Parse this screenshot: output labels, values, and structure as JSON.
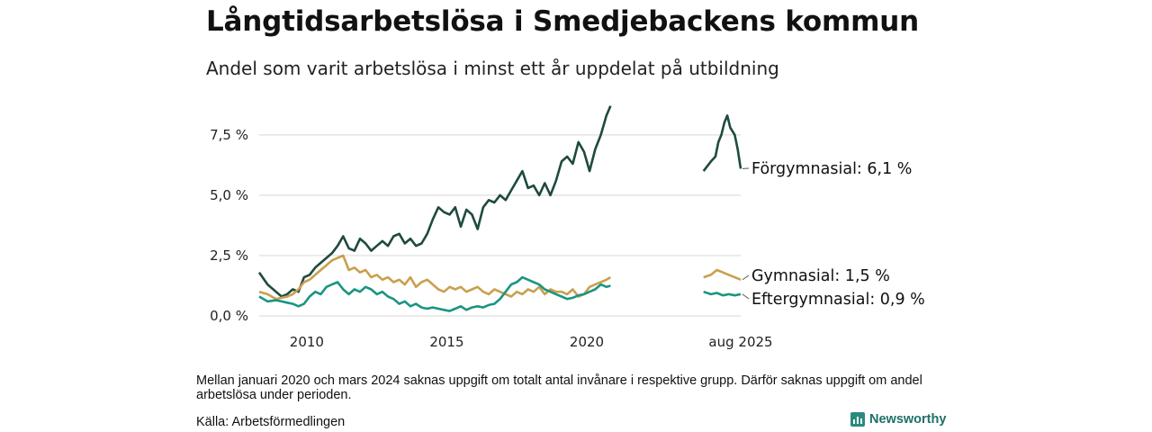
{
  "title": "Långtidsarbetslösa i Smedjebackens kommun",
  "subtitle": "Andel som varit arbetslösa i minst ett år uppdelat på utbildning",
  "note": "Mellan januari 2020 och mars 2024 saknas uppgift om totalt antal invånare i respektive grupp. Därför saknas uppgift om andel arbetslösa under perioden.",
  "source": "Källa: Arbetsförmedlingen",
  "brand": "Newsworthy",
  "colors": {
    "forgymnasial": "#1e4a40",
    "gymnasial": "#c9a04e",
    "eftergymnasial": "#1a9580",
    "grid": "#dddddd"
  },
  "chart_data": {
    "type": "line",
    "yticks": [
      "0,0 %",
      "2,5 %",
      "5,0 %",
      "7,5 %"
    ],
    "ytick_values": [
      0,
      2.5,
      5.0,
      7.5
    ],
    "xticks": [
      "2010",
      "2015",
      "2020",
      "aug 2025"
    ],
    "xtick_values": [
      2010,
      2015,
      2020,
      2025.6
    ],
    "ylim": [
      0,
      8.8
    ],
    "x_break": [
      2020.9,
      2024.3
    ],
    "series": [
      {
        "name": "Förgymnasial",
        "end_label": "Förgymnasial: 6,1 %",
        "color": "#1e4a40",
        "segments": [
          [
            [
              2008.3,
              1.8
            ],
            [
              2008.6,
              1.3
            ],
            [
              2008.9,
              1.0
            ],
            [
              2009.1,
              0.8
            ],
            [
              2009.3,
              0.9
            ],
            [
              2009.5,
              1.1
            ],
            [
              2009.7,
              1.0
            ],
            [
              2009.9,
              1.6
            ],
            [
              2010.1,
              1.7
            ],
            [
              2010.3,
              2.0
            ],
            [
              2010.5,
              2.2
            ],
            [
              2010.7,
              2.4
            ],
            [
              2010.9,
              2.6
            ],
            [
              2011.1,
              2.9
            ],
            [
              2011.3,
              3.3
            ],
            [
              2011.5,
              2.8
            ],
            [
              2011.7,
              2.7
            ],
            [
              2011.9,
              3.2
            ],
            [
              2012.1,
              3.0
            ],
            [
              2012.3,
              2.7
            ],
            [
              2012.5,
              2.9
            ],
            [
              2012.7,
              3.1
            ],
            [
              2012.9,
              2.9
            ],
            [
              2013.1,
              3.3
            ],
            [
              2013.3,
              3.4
            ],
            [
              2013.5,
              3.0
            ],
            [
              2013.7,
              3.2
            ],
            [
              2013.9,
              2.9
            ],
            [
              2014.1,
              3.0
            ],
            [
              2014.3,
              3.4
            ],
            [
              2014.5,
              4.0
            ],
            [
              2014.7,
              4.5
            ],
            [
              2014.9,
              4.3
            ],
            [
              2015.1,
              4.2
            ],
            [
              2015.3,
              4.5
            ],
            [
              2015.5,
              3.7
            ],
            [
              2015.7,
              4.4
            ],
            [
              2015.9,
              4.2
            ],
            [
              2016.1,
              3.6
            ],
            [
              2016.3,
              4.5
            ],
            [
              2016.5,
              4.8
            ],
            [
              2016.7,
              4.7
            ],
            [
              2016.9,
              5.0
            ],
            [
              2017.1,
              4.8
            ],
            [
              2017.3,
              5.2
            ],
            [
              2017.5,
              5.6
            ],
            [
              2017.7,
              6.0
            ],
            [
              2017.9,
              5.3
            ],
            [
              2018.1,
              5.4
            ],
            [
              2018.3,
              5.0
            ],
            [
              2018.5,
              5.5
            ],
            [
              2018.7,
              5.0
            ],
            [
              2018.9,
              5.6
            ],
            [
              2019.1,
              6.4
            ],
            [
              2019.3,
              6.6
            ],
            [
              2019.5,
              6.3
            ],
            [
              2019.7,
              7.2
            ],
            [
              2019.9,
              6.8
            ],
            [
              2020.1,
              6.0
            ],
            [
              2020.3,
              6.9
            ],
            [
              2020.5,
              7.5
            ],
            [
              2020.7,
              8.3
            ],
            [
              2020.85,
              8.7
            ]
          ],
          [
            [
              2024.35,
              6.0
            ],
            [
              2024.6,
              6.4
            ],
            [
              2024.75,
              6.6
            ],
            [
              2024.85,
              7.2
            ],
            [
              2024.95,
              7.5
            ],
            [
              2025.05,
              8.0
            ],
            [
              2025.15,
              8.3
            ],
            [
              2025.25,
              7.8
            ],
            [
              2025.4,
              7.5
            ],
            [
              2025.5,
              6.9
            ],
            [
              2025.6,
              6.1
            ]
          ]
        ]
      },
      {
        "name": "Gymnasial",
        "end_label": "Gymnasial: 1,5 %",
        "color": "#c9a04e",
        "segments": [
          [
            [
              2008.3,
              1.0
            ],
            [
              2008.6,
              0.9
            ],
            [
              2008.9,
              0.7
            ],
            [
              2009.1,
              0.75
            ],
            [
              2009.3,
              0.8
            ],
            [
              2009.5,
              0.9
            ],
            [
              2009.7,
              1.1
            ],
            [
              2009.9,
              1.4
            ],
            [
              2010.1,
              1.5
            ],
            [
              2010.3,
              1.7
            ],
            [
              2010.5,
              1.9
            ],
            [
              2010.7,
              2.1
            ],
            [
              2010.9,
              2.3
            ],
            [
              2011.1,
              2.4
            ],
            [
              2011.3,
              2.5
            ],
            [
              2011.5,
              1.9
            ],
            [
              2011.7,
              2.0
            ],
            [
              2011.9,
              1.8
            ],
            [
              2012.1,
              1.9
            ],
            [
              2012.3,
              1.6
            ],
            [
              2012.5,
              1.7
            ],
            [
              2012.7,
              1.5
            ],
            [
              2012.9,
              1.6
            ],
            [
              2013.1,
              1.4
            ],
            [
              2013.3,
              1.5
            ],
            [
              2013.5,
              1.3
            ],
            [
              2013.7,
              1.6
            ],
            [
              2013.9,
              1.2
            ],
            [
              2014.1,
              1.4
            ],
            [
              2014.3,
              1.5
            ],
            [
              2014.5,
              1.3
            ],
            [
              2014.7,
              1.1
            ],
            [
              2014.9,
              1.0
            ],
            [
              2015.1,
              1.2
            ],
            [
              2015.3,
              1.1
            ],
            [
              2015.5,
              1.2
            ],
            [
              2015.7,
              1.0
            ],
            [
              2015.9,
              1.1
            ],
            [
              2016.1,
              1.2
            ],
            [
              2016.3,
              1.0
            ],
            [
              2016.5,
              0.9
            ],
            [
              2016.7,
              1.1
            ],
            [
              2016.9,
              1.0
            ],
            [
              2017.1,
              0.9
            ],
            [
              2017.3,
              0.8
            ],
            [
              2017.5,
              1.0
            ],
            [
              2017.7,
              0.9
            ],
            [
              2017.9,
              1.1
            ],
            [
              2018.1,
              1.0
            ],
            [
              2018.3,
              1.2
            ],
            [
              2018.5,
              0.9
            ],
            [
              2018.7,
              1.1
            ],
            [
              2018.9,
              1.0
            ],
            [
              2019.1,
              1.0
            ],
            [
              2019.3,
              0.9
            ],
            [
              2019.5,
              1.1
            ],
            [
              2019.7,
              0.8
            ],
            [
              2019.9,
              0.9
            ],
            [
              2020.1,
              1.2
            ],
            [
              2020.3,
              1.3
            ],
            [
              2020.5,
              1.4
            ],
            [
              2020.7,
              1.5
            ],
            [
              2020.85,
              1.6
            ]
          ],
          [
            [
              2024.35,
              1.6
            ],
            [
              2024.6,
              1.7
            ],
            [
              2024.8,
              1.9
            ],
            [
              2025.0,
              1.8
            ],
            [
              2025.2,
              1.7
            ],
            [
              2025.4,
              1.6
            ],
            [
              2025.6,
              1.5
            ]
          ]
        ]
      },
      {
        "name": "Eftergymnasial",
        "end_label": "Eftergymnasial: 0,9 %",
        "color": "#1a9580",
        "segments": [
          [
            [
              2008.3,
              0.8
            ],
            [
              2008.6,
              0.6
            ],
            [
              2008.9,
              0.65
            ],
            [
              2009.1,
              0.6
            ],
            [
              2009.3,
              0.55
            ],
            [
              2009.5,
              0.5
            ],
            [
              2009.7,
              0.4
            ],
            [
              2009.9,
              0.5
            ],
            [
              2010.1,
              0.8
            ],
            [
              2010.3,
              1.0
            ],
            [
              2010.5,
              0.9
            ],
            [
              2010.7,
              1.2
            ],
            [
              2010.9,
              1.3
            ],
            [
              2011.1,
              1.4
            ],
            [
              2011.3,
              1.1
            ],
            [
              2011.5,
              0.9
            ],
            [
              2011.7,
              1.1
            ],
            [
              2011.9,
              1.0
            ],
            [
              2012.1,
              1.2
            ],
            [
              2012.3,
              1.1
            ],
            [
              2012.5,
              0.9
            ],
            [
              2012.7,
              1.0
            ],
            [
              2012.9,
              0.8
            ],
            [
              2013.1,
              0.7
            ],
            [
              2013.3,
              0.5
            ],
            [
              2013.5,
              0.6
            ],
            [
              2013.7,
              0.4
            ],
            [
              2013.9,
              0.5
            ],
            [
              2014.1,
              0.35
            ],
            [
              2014.3,
              0.3
            ],
            [
              2014.5,
              0.35
            ],
            [
              2014.7,
              0.3
            ],
            [
              2014.9,
              0.25
            ],
            [
              2015.1,
              0.2
            ],
            [
              2015.3,
              0.3
            ],
            [
              2015.5,
              0.4
            ],
            [
              2015.7,
              0.25
            ],
            [
              2015.9,
              0.35
            ],
            [
              2016.1,
              0.4
            ],
            [
              2016.3,
              0.35
            ],
            [
              2016.5,
              0.45
            ],
            [
              2016.7,
              0.5
            ],
            [
              2016.9,
              0.7
            ],
            [
              2017.1,
              1.0
            ],
            [
              2017.3,
              1.3
            ],
            [
              2017.5,
              1.4
            ],
            [
              2017.7,
              1.6
            ],
            [
              2017.9,
              1.5
            ],
            [
              2018.1,
              1.4
            ],
            [
              2018.3,
              1.3
            ],
            [
              2018.5,
              1.1
            ],
            [
              2018.7,
              1.0
            ],
            [
              2018.9,
              0.9
            ],
            [
              2019.1,
              0.8
            ],
            [
              2019.3,
              0.7
            ],
            [
              2019.5,
              0.75
            ],
            [
              2019.7,
              0.85
            ],
            [
              2019.9,
              0.9
            ],
            [
              2020.1,
              1.0
            ],
            [
              2020.3,
              1.1
            ],
            [
              2020.5,
              1.3
            ],
            [
              2020.7,
              1.2
            ],
            [
              2020.85,
              1.25
            ]
          ],
          [
            [
              2024.35,
              1.0
            ],
            [
              2024.6,
              0.9
            ],
            [
              2024.8,
              0.95
            ],
            [
              2025.0,
              0.85
            ],
            [
              2025.2,
              0.9
            ],
            [
              2025.4,
              0.85
            ],
            [
              2025.6,
              0.9
            ]
          ]
        ]
      }
    ]
  }
}
